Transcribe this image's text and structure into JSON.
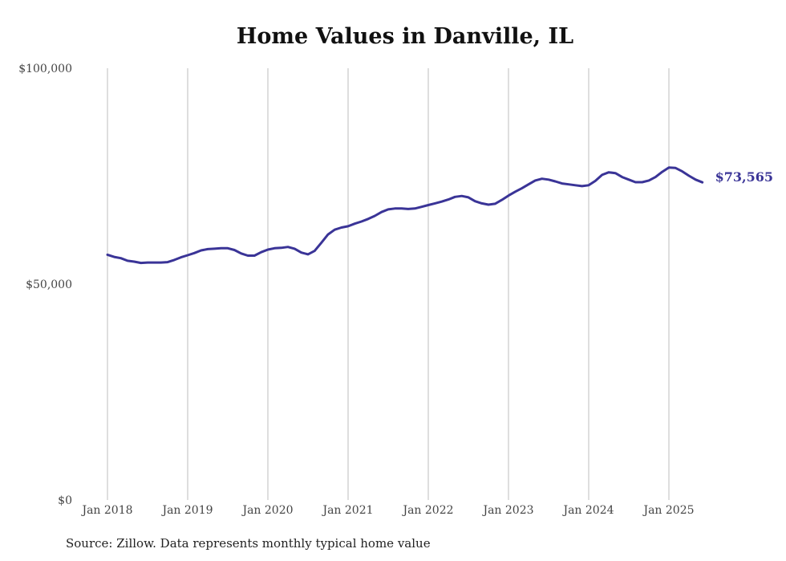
{
  "chart_data": {
    "type": "line",
    "title": "Home Values in Danville, IL",
    "xlabel": "",
    "ylabel": "",
    "ylim": [
      0,
      100000
    ],
    "y_ticks": [
      {
        "value": 0,
        "label": "$0"
      },
      {
        "value": 50000,
        "label": "$50,000"
      },
      {
        "value": 100000,
        "label": "$100,000"
      }
    ],
    "x_ticks": [
      {
        "value": "2018-01",
        "label": "Jan 2018"
      },
      {
        "value": "2019-01",
        "label": "Jan 2019"
      },
      {
        "value": "2020-01",
        "label": "Jan 2020"
      },
      {
        "value": "2021-01",
        "label": "Jan 2021"
      },
      {
        "value": "2022-01",
        "label": "Jan 2022"
      },
      {
        "value": "2023-01",
        "label": "Jan 2023"
      },
      {
        "value": "2024-01",
        "label": "Jan 2024"
      },
      {
        "value": "2025-01",
        "label": "Jan 2025"
      }
    ],
    "grid": {
      "vertical": true,
      "horizontal": false
    },
    "series": [
      {
        "color": "#3a3497",
        "end_label": "$73,565",
        "x": [
          "2018-01",
          "2018-02",
          "2018-03",
          "2018-04",
          "2018-05",
          "2018-06",
          "2018-07",
          "2018-08",
          "2018-09",
          "2018-10",
          "2018-11",
          "2018-12",
          "2019-01",
          "2019-02",
          "2019-03",
          "2019-04",
          "2019-05",
          "2019-06",
          "2019-07",
          "2019-08",
          "2019-09",
          "2019-10",
          "2019-11",
          "2019-12",
          "2020-01",
          "2020-02",
          "2020-03",
          "2020-04",
          "2020-05",
          "2020-06",
          "2020-07",
          "2020-08",
          "2020-09",
          "2020-10",
          "2020-11",
          "2020-12",
          "2021-01",
          "2021-02",
          "2021-03",
          "2021-04",
          "2021-05",
          "2021-06",
          "2021-07",
          "2021-08",
          "2021-09",
          "2021-10",
          "2021-11",
          "2021-12",
          "2022-01",
          "2022-02",
          "2022-03",
          "2022-04",
          "2022-05",
          "2022-06",
          "2022-07",
          "2022-08",
          "2022-09",
          "2022-10",
          "2022-11",
          "2022-12",
          "2023-01",
          "2023-02",
          "2023-03",
          "2023-04",
          "2023-05",
          "2023-06",
          "2023-07",
          "2023-08",
          "2023-09",
          "2023-10",
          "2023-11",
          "2023-12",
          "2024-01",
          "2024-02",
          "2024-03",
          "2024-04",
          "2024-05",
          "2024-06",
          "2024-07",
          "2024-08",
          "2024-09",
          "2024-10",
          "2024-11",
          "2024-12",
          "2025-01",
          "2025-02",
          "2025-03",
          "2025-04",
          "2025-05",
          "2025-06"
        ],
        "values": [
          56800,
          56300,
          56000,
          55400,
          55200,
          54900,
          55000,
          55000,
          55000,
          55100,
          55600,
          56200,
          56700,
          57200,
          57800,
          58100,
          58200,
          58300,
          58300,
          57900,
          57100,
          56600,
          56600,
          57400,
          58000,
          58300,
          58400,
          58600,
          58200,
          57300,
          56900,
          57700,
          59600,
          61500,
          62600,
          63100,
          63400,
          64000,
          64500,
          65100,
          65800,
          66700,
          67300,
          67500,
          67500,
          67400,
          67500,
          67900,
          68300,
          68700,
          69100,
          69600,
          70200,
          70400,
          70100,
          69200,
          68700,
          68400,
          68600,
          69500,
          70500,
          71400,
          72200,
          73100,
          74000,
          74400,
          74200,
          73800,
          73300,
          73100,
          72900,
          72700,
          72900,
          73900,
          75300,
          75900,
          75700,
          74800,
          74200,
          73600,
          73600,
          74000,
          74800,
          76000,
          77000,
          76900,
          76100,
          75100,
          74200,
          73565
        ]
      }
    ]
  },
  "source_note": "Source: Zillow. Data represents monthly typical home value"
}
